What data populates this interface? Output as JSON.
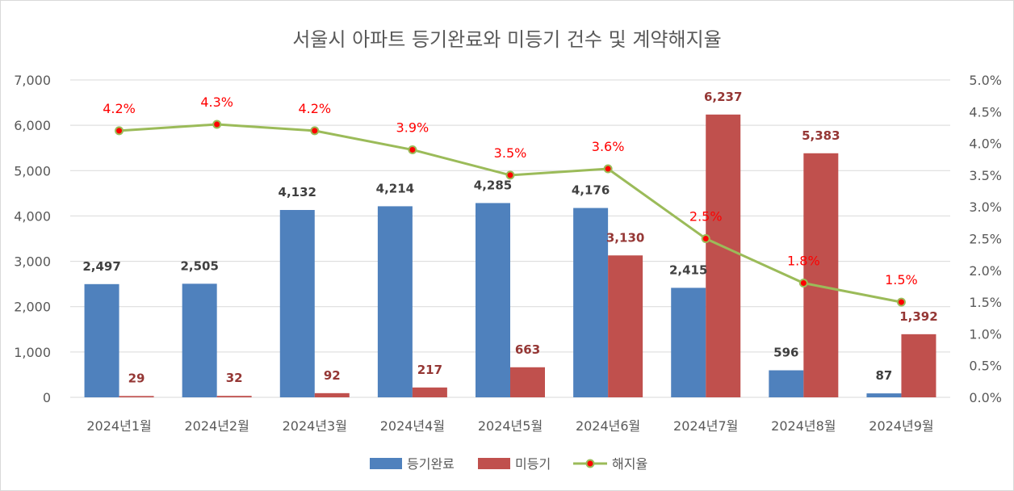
{
  "chart_data": {
    "type": "bar",
    "title": "서울시 아파트 등기완료와 미등기 건수 및 계약해지율",
    "categories": [
      "2024년1월",
      "2024년2월",
      "2024년3월",
      "2024년4월",
      "2024년5월",
      "2024년6월",
      "2024년7월",
      "2024년8월",
      "2024년9월"
    ],
    "series": [
      {
        "name": "등기완료",
        "type": "bar",
        "axis": "left",
        "color": "#4f81bd",
        "values": [
          2497,
          2505,
          4132,
          4214,
          4285,
          4176,
          2415,
          596,
          87
        ],
        "labels": [
          "2,497",
          "2,505",
          "4,132",
          "4,214",
          "4,285",
          "4,176",
          "2,415",
          "596",
          "87"
        ]
      },
      {
        "name": "미등기",
        "type": "bar",
        "axis": "left",
        "color": "#c0504d",
        "values": [
          29,
          32,
          92,
          217,
          663,
          3130,
          6237,
          5383,
          1392
        ],
        "labels": [
          "29",
          "32",
          "92",
          "217",
          "663",
          "3,130",
          "6,237",
          "5,383",
          "1,392"
        ]
      },
      {
        "name": "해지율",
        "type": "line",
        "axis": "right",
        "color": "#9bbb59",
        "marker_color": "#ff0000",
        "values": [
          4.2,
          4.3,
          4.2,
          3.9,
          3.5,
          3.6,
          2.5,
          1.8,
          1.5
        ],
        "labels": [
          "4.2%",
          "4.3%",
          "4.2%",
          "3.9%",
          "3.5%",
          "3.6%",
          "2.5%",
          "1.8%",
          "1.5%"
        ]
      }
    ],
    "y_left": {
      "min": 0,
      "max": 7000,
      "ticks": [
        "0",
        "1,000",
        "2,000",
        "3,000",
        "4,000",
        "5,000",
        "6,000",
        "7,000"
      ]
    },
    "y_right": {
      "min": 0,
      "max": 5.0,
      "ticks": [
        "0.0%",
        "0.5%",
        "1.0%",
        "1.5%",
        "2.0%",
        "2.5%",
        "3.0%",
        "3.5%",
        "4.0%",
        "4.5%",
        "5.0%"
      ]
    },
    "grid": true,
    "legend_position": "bottom"
  }
}
